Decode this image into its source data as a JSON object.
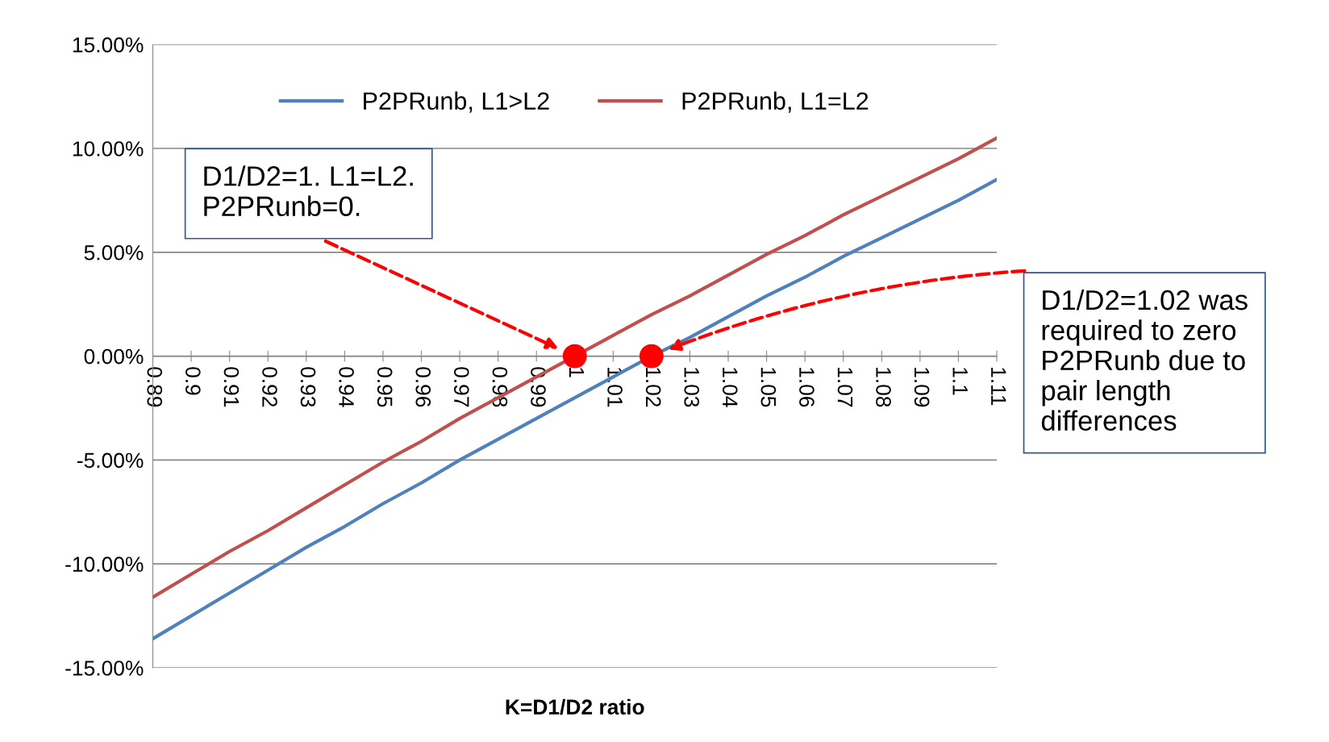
{
  "chart_data": {
    "type": "line",
    "categories": [
      "0.89",
      "0.9",
      "0.91",
      "0.92",
      "0.93",
      "0.94",
      "0.95",
      "0.96",
      "0.97",
      "0.98",
      "0.99",
      "1",
      "1.01",
      "1.02",
      "1.03",
      "1.04",
      "1.05",
      "1.06",
      "1.07",
      "1.08",
      "1.09",
      "1.1",
      "1.11"
    ],
    "series": [
      {
        "name": "P2PRunb, L1>L2",
        "color": "#4f81bd",
        "values": [
          -13.6,
          -12.5,
          -11.4,
          -10.3,
          -9.2,
          -8.2,
          -7.1,
          -6.1,
          -5.0,
          -4.0,
          -3.0,
          -2.0,
          -1.0,
          0.0,
          0.9,
          1.9,
          2.9,
          3.8,
          4.8,
          5.7,
          6.6,
          7.5,
          8.5
        ]
      },
      {
        "name": "P2PRunb, L1=L2",
        "color": "#c0504d",
        "values": [
          -11.6,
          -10.5,
          -9.4,
          -8.4,
          -7.3,
          -6.2,
          -5.1,
          -4.1,
          -3.0,
          -2.0,
          -1.0,
          0.0,
          1.0,
          2.0,
          2.9,
          3.9,
          4.9,
          5.8,
          6.8,
          7.7,
          8.6,
          9.5,
          10.5
        ]
      },
      {
        "type": "scatter",
        "marker": "circle",
        "color": "#ff0000",
        "x": [
          "1",
          "1.02"
        ],
        "values": [
          0,
          0
        ]
      }
    ],
    "ylim": [
      -15,
      15
    ],
    "yticks": [
      {
        "value": -15,
        "label": "-15.00%"
      },
      {
        "value": -10,
        "label": "-10.00%"
      },
      {
        "value": -5,
        "label": "-5.00%"
      },
      {
        "value": 0,
        "label": "0.00%"
      },
      {
        "value": 5,
        "label": "5.00%"
      },
      {
        "value": 10,
        "label": "10.00%"
      },
      {
        "value": 15,
        "label": "15.00%"
      }
    ],
    "xlabel": "K=D1/D2 ratio",
    "grid": "y",
    "legend": "top",
    "annotations": [
      "D1/D2=1. L1=L2.\nP2PRunb=0.",
      "D1/D2=1.02 was\nrequired to zero\nP2PRunb due to\npair length\ndifferences"
    ]
  }
}
